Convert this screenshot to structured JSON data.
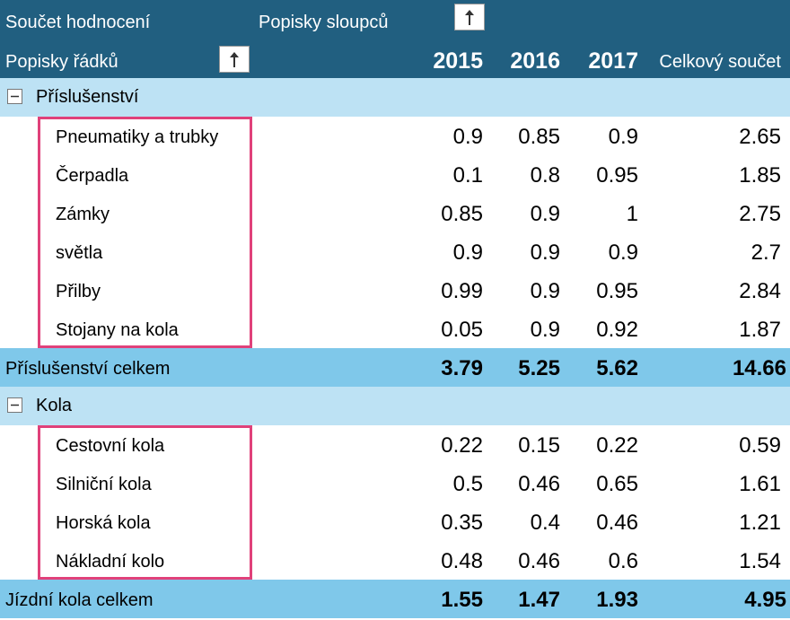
{
  "header": {
    "value_label": "Součet hodnocení",
    "column_labels": "Popisky sloupců",
    "row_labels": "Popisky řádků",
    "columns": [
      "2015",
      "2016",
      "2017",
      "Celkový součet"
    ]
  },
  "groups": [
    {
      "name": "Příslušenství",
      "items": [
        {
          "label": "Pneumatiky a trubky",
          "values": [
            0.9,
            0.85,
            0.9,
            2.65
          ]
        },
        {
          "label": "Čerpadla",
          "values": [
            0.1,
            0.8,
            0.95,
            1.85
          ]
        },
        {
          "label": "Zámky",
          "values": [
            0.85,
            0.9,
            1,
            2.75
          ]
        },
        {
          "label": "světla",
          "values": [
            0.9,
            0.9,
            0.9,
            2.7
          ]
        },
        {
          "label": "Přilby",
          "values": [
            0.99,
            0.9,
            0.95,
            2.84
          ]
        },
        {
          "label": "Stojany na kola",
          "values": [
            0.05,
            0.9,
            0.92,
            1.87
          ]
        }
      ],
      "total_label": "Příslušenství celkem",
      "totals": [
        3.79,
        5.25,
        5.62,
        14.66
      ]
    },
    {
      "name": "Kola",
      "items": [
        {
          "label": "Cestovní kola",
          "values": [
            0.22,
            0.15,
            0.22,
            0.59
          ]
        },
        {
          "label": "Silniční kola",
          "values": [
            0.5,
            0.46,
            0.65,
            1.61
          ]
        },
        {
          "label": "Horská kola",
          "values": [
            0.35,
            0.4,
            0.46,
            1.21
          ]
        },
        {
          "label": "Nákladní kolo",
          "values": [
            0.48,
            0.46,
            0.6,
            1.54
          ]
        }
      ],
      "total_label": "Jízdní kola celkem",
      "totals": [
        1.55,
        1.47,
        1.93,
        4.95
      ]
    }
  ]
}
